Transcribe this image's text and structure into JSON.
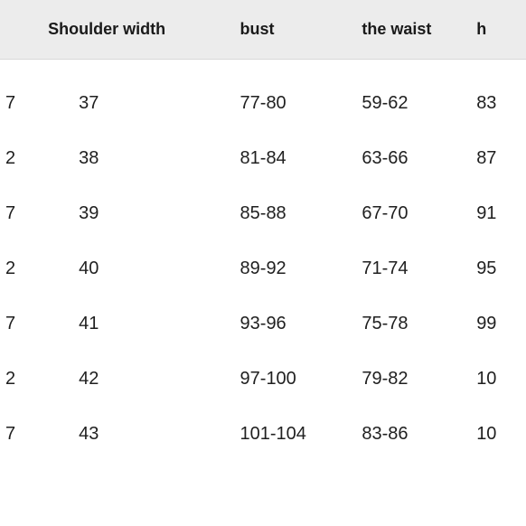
{
  "table": {
    "header_bg": "#ececec",
    "header_border": "#d9d9d9",
    "body_bg": "#ffffff",
    "text_color": "#1a1a1a",
    "font_size_header": 18,
    "font_size_body": 20,
    "columns": [
      {
        "label": "",
        "class": "col0"
      },
      {
        "label": "Shoulder width",
        "class": "col1"
      },
      {
        "label": "bust",
        "class": "col2"
      },
      {
        "label": "the waist",
        "class": "col3"
      },
      {
        "label": "h",
        "class": "col4"
      }
    ],
    "rows": [
      [
        "7",
        "37",
        "77-80",
        "59-62",
        "83"
      ],
      [
        "2",
        "38",
        "81-84",
        "63-66",
        "87"
      ],
      [
        "7",
        "39",
        "85-88",
        "67-70",
        "91"
      ],
      [
        "2",
        "40",
        "89-92",
        "71-74",
        "95"
      ],
      [
        "7",
        "41",
        "93-96",
        "75-78",
        "99"
      ],
      [
        "2",
        "42",
        "97-100",
        "79-82",
        "10"
      ],
      [
        "7",
        "43",
        "101-104",
        "83-86",
        "10"
      ]
    ]
  }
}
